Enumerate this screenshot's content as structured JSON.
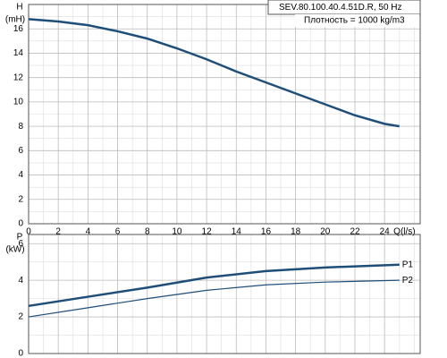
{
  "chart_data": [
    {
      "type": "line",
      "annotations": [
        "SEV.80.100.40.4.51D.R, 50 Hz",
        "Плотность = 1000 kg/m3"
      ],
      "ylabel": "H",
      "ylabel_unit": "(mH)",
      "xlabel": "Q(l/s)",
      "x": [
        0,
        2,
        4,
        6,
        8,
        10,
        12,
        14,
        16,
        18,
        20,
        22,
        24,
        25
      ],
      "series": [
        {
          "color": "#1f4e79",
          "line_width": 2.5,
          "values": [
            16.8,
            16.6,
            16.3,
            15.8,
            15.2,
            14.4,
            13.5,
            12.5,
            11.6,
            10.7,
            9.8,
            8.9,
            8.2,
            8.0
          ]
        }
      ],
      "xlim": [
        0,
        26.4
      ],
      "xticks": [
        0,
        2,
        4,
        6,
        8,
        10,
        12,
        14,
        16,
        18,
        20,
        22,
        24
      ],
      "ylim": [
        0,
        18
      ],
      "yticks": [
        0,
        2,
        4,
        6,
        8,
        10,
        12,
        14,
        16
      ],
      "grid": true,
      "minor_grid": true
    },
    {
      "type": "line",
      "ylabel": "P",
      "ylabel_unit": "(kW)",
      "x": [
        0,
        4,
        8,
        12,
        16,
        20,
        25
      ],
      "series": [
        {
          "name": "P1",
          "color": "#1f4e79",
          "line_width": 2.5,
          "values": [
            2.6,
            3.1,
            3.6,
            4.15,
            4.5,
            4.7,
            4.85
          ]
        },
        {
          "name": "P2",
          "color": "#1f4e79",
          "line_width": 1.2,
          "values": [
            2.0,
            2.5,
            3.0,
            3.45,
            3.75,
            3.9,
            4.0
          ]
        }
      ],
      "xlim": [
        0,
        26.4
      ],
      "ylim": [
        0,
        6.5
      ],
      "yticks": [
        0,
        2,
        4,
        6
      ],
      "grid": true,
      "minor_grid": true
    }
  ]
}
